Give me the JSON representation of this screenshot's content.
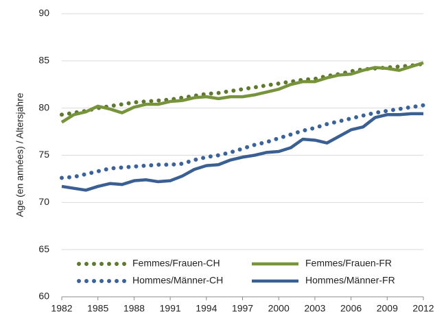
{
  "chart_data": {
    "type": "line",
    "ylabel": "Age (en années) / Altersjahre",
    "x": [
      1982,
      1983,
      1984,
      1985,
      1986,
      1987,
      1988,
      1989,
      1990,
      1991,
      1992,
      1993,
      1994,
      1995,
      1996,
      1997,
      1998,
      1999,
      2000,
      2001,
      2002,
      2003,
      2004,
      2005,
      2006,
      2007,
      2008,
      2009,
      2010,
      2011,
      2012
    ],
    "xlim": [
      1982,
      2012
    ],
    "xticks": [
      1982,
      1985,
      1988,
      1991,
      1994,
      1997,
      2000,
      2003,
      2006,
      2009,
      2012
    ],
    "ylim": [
      60,
      90
    ],
    "yticks": [
      60,
      65,
      70,
      75,
      80,
      85,
      90
    ],
    "grid": true,
    "legend": "lower left",
    "series": [
      {
        "name": "Femmes/Frauen-CH",
        "color": "#5f7a30",
        "style": "dotted",
        "values": [
          79.3,
          79.5,
          79.7,
          80.0,
          80.2,
          80.4,
          80.6,
          80.7,
          80.8,
          80.9,
          81.1,
          81.3,
          81.5,
          81.6,
          81.8,
          82.0,
          82.2,
          82.4,
          82.6,
          82.8,
          83.0,
          83.1,
          83.4,
          83.6,
          83.9,
          84.1,
          84.2,
          84.3,
          84.4,
          84.5,
          84.7
        ]
      },
      {
        "name": "Femmes/Frauen-FR",
        "color": "#77933c",
        "style": "solid",
        "values": [
          78.5,
          79.3,
          79.6,
          80.2,
          79.9,
          79.5,
          80.1,
          80.4,
          80.4,
          80.7,
          80.8,
          81.1,
          81.2,
          81.0,
          81.2,
          81.2,
          81.4,
          81.7,
          82.0,
          82.5,
          82.8,
          82.8,
          83.2,
          83.5,
          83.6,
          84.0,
          84.3,
          84.2,
          84.0,
          84.4,
          84.8
        ]
      },
      {
        "name": "Hommes/Männer-CH",
        "color": "#3b639a",
        "style": "dotted",
        "values": [
          72.6,
          72.7,
          73.0,
          73.3,
          73.6,
          73.7,
          73.8,
          73.9,
          74.0,
          74.0,
          74.1,
          74.5,
          74.8,
          75.0,
          75.3,
          75.7,
          76.1,
          76.4,
          76.8,
          77.2,
          77.6,
          77.9,
          78.3,
          78.6,
          78.9,
          79.2,
          79.5,
          79.7,
          79.9,
          80.1,
          80.3
        ]
      },
      {
        "name": "Hommes/Männer-FR",
        "color": "#3a5f93",
        "style": "solid",
        "values": [
          71.7,
          71.5,
          71.3,
          71.7,
          72.0,
          71.9,
          72.3,
          72.4,
          72.2,
          72.3,
          72.8,
          73.5,
          73.9,
          74.0,
          74.5,
          74.8,
          75.0,
          75.3,
          75.4,
          75.8,
          76.7,
          76.6,
          76.3,
          77.0,
          77.7,
          78.0,
          79.0,
          79.3,
          79.3,
          79.4,
          79.4
        ]
      }
    ]
  }
}
